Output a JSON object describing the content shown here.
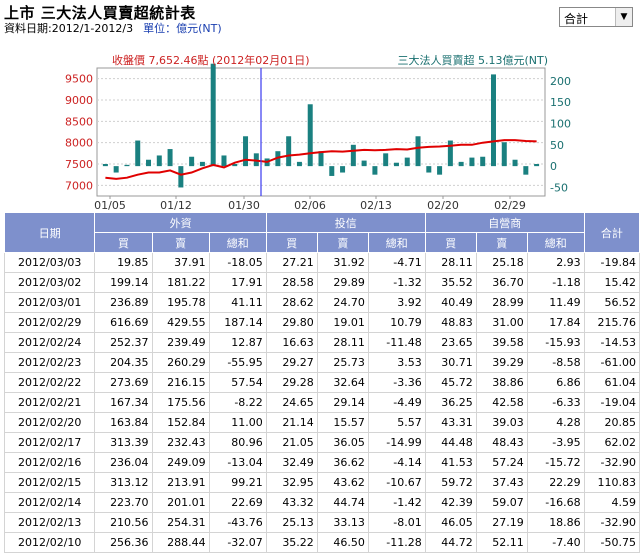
{
  "header": {
    "title": "上市 三大法人買賣超統計表",
    "date_label": "資料日期:2012/1-2012/3",
    "unit_label": "單位：億元(NT)"
  },
  "select": {
    "value": "合計"
  },
  "chart_data": {
    "type": "bar",
    "left_label": "收盤價 7,652.46點 (2012年02月01日)",
    "right_label": "三大法人買賣超 5.13億元(NT)",
    "left_ticks": [
      "9500",
      "9000",
      "8500",
      "8000",
      "7500",
      "7000"
    ],
    "right_ticks": [
      "200",
      "150",
      "100",
      "50",
      "0",
      "-50"
    ],
    "x_ticks": [
      "01/05",
      "01/12",
      "01/30",
      "02/06",
      "02/13",
      "02/20",
      "02/29"
    ],
    "left_range": [
      6750,
      9750
    ],
    "right_range": [
      -70,
      230
    ],
    "colors": {
      "bar": "#1a8080",
      "line": "#e00000",
      "cursor": "#3a3af0",
      "left_axis": "#cc2222",
      "right_axis": "#1a7070"
    },
    "series": [
      {
        "values": [
          5,
          -15,
          3,
          60,
          15,
          25,
          40,
          -50,
          22,
          10,
          240,
          25,
          5,
          70,
          30,
          18,
          35,
          70,
          10,
          145,
          35,
          -23,
          -15,
          50,
          13,
          -20,
          30,
          8,
          20,
          70,
          -15,
          -20,
          60,
          10,
          20,
          22,
          215,
          56,
          15,
          -20,
          5
        ]
      },
      {
        "values": [
          7180,
          7150,
          7180,
          7250,
          7300,
          7300,
          7350,
          7250,
          7300,
          7400,
          7480,
          7420,
          7530,
          7600,
          7580,
          7550,
          7650,
          7700,
          7720,
          7750,
          7780,
          7800,
          7790,
          7810,
          7830,
          7820,
          7830,
          7850,
          7840,
          7880,
          7900,
          7910,
          7930,
          7950,
          7950,
          8000,
          8030,
          8060,
          8060,
          8040,
          8030
        ]
      }
    ]
  },
  "table": {
    "header": {
      "date": "日期",
      "foreign": "外資",
      "trust": "投信",
      "dealer": "自營商",
      "total": "合計",
      "buy": "買",
      "sell": "賣",
      "net": "總和"
    },
    "rows": [
      [
        "2012/03/03",
        "19.85",
        "37.91",
        "-18.05",
        "27.21",
        "31.92",
        "-4.71",
        "28.11",
        "25.18",
        "2.93",
        "-19.84"
      ],
      [
        "2012/03/02",
        "199.14",
        "181.22",
        "17.91",
        "28.58",
        "29.89",
        "-1.32",
        "35.52",
        "36.70",
        "-1.18",
        "15.42"
      ],
      [
        "2012/03/01",
        "236.89",
        "195.78",
        "41.11",
        "28.62",
        "24.70",
        "3.92",
        "40.49",
        "28.99",
        "11.49",
        "56.52"
      ],
      [
        "2012/02/29",
        "616.69",
        "429.55",
        "187.14",
        "29.80",
        "19.01",
        "10.79",
        "48.83",
        "31.00",
        "17.84",
        "215.76"
      ],
      [
        "2012/02/24",
        "252.37",
        "239.49",
        "12.87",
        "16.63",
        "28.11",
        "-11.48",
        "23.65",
        "39.58",
        "-15.93",
        "-14.53"
      ],
      [
        "2012/02/23",
        "204.35",
        "260.29",
        "-55.95",
        "29.27",
        "25.73",
        "3.53",
        "30.71",
        "39.29",
        "-8.58",
        "-61.00"
      ],
      [
        "2012/02/22",
        "273.69",
        "216.15",
        "57.54",
        "29.28",
        "32.64",
        "-3.36",
        "45.72",
        "38.86",
        "6.86",
        "61.04"
      ],
      [
        "2012/02/21",
        "167.34",
        "175.56",
        "-8.22",
        "24.65",
        "29.14",
        "-4.49",
        "36.25",
        "42.58",
        "-6.33",
        "-19.04"
      ],
      [
        "2012/02/20",
        "163.84",
        "152.84",
        "11.00",
        "21.14",
        "15.57",
        "5.57",
        "43.31",
        "39.03",
        "4.28",
        "20.85"
      ],
      [
        "2012/02/17",
        "313.39",
        "232.43",
        "80.96",
        "21.05",
        "36.05",
        "-14.99",
        "44.48",
        "48.43",
        "-3.95",
        "62.02"
      ],
      [
        "2012/02/16",
        "236.04",
        "249.09",
        "-13.04",
        "32.49",
        "36.62",
        "-4.14",
        "41.53",
        "57.24",
        "-15.72",
        "-32.90"
      ],
      [
        "2012/02/15",
        "313.12",
        "213.91",
        "99.21",
        "32.95",
        "43.62",
        "-10.67",
        "59.72",
        "37.43",
        "22.29",
        "110.83"
      ],
      [
        "2012/02/14",
        "223.70",
        "201.01",
        "22.69",
        "43.32",
        "44.74",
        "-1.42",
        "42.39",
        "59.07",
        "-16.68",
        "4.59"
      ],
      [
        "2012/02/13",
        "210.56",
        "254.31",
        "-43.76",
        "25.13",
        "33.13",
        "-8.01",
        "46.05",
        "27.19",
        "18.86",
        "-32.90"
      ],
      [
        "2012/02/10",
        "256.36",
        "288.44",
        "-32.07",
        "35.22",
        "46.50",
        "-11.28",
        "44.72",
        "52.11",
        "-7.40",
        "-50.75"
      ]
    ]
  }
}
